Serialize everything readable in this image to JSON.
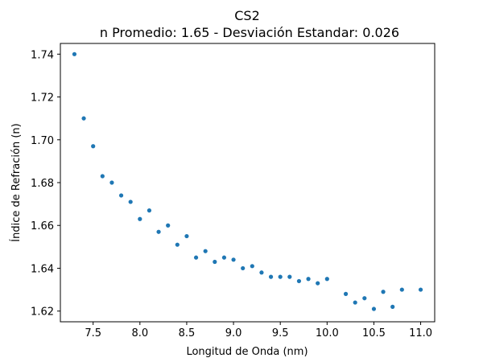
{
  "chart_data": {
    "type": "scatter",
    "title": "CS2",
    "subtitle": "n Promedio: 1.65 - Desviación Estandar: 0.026",
    "xlabel": "Longitud de Onda (nm)",
    "ylabel": "Índice de Refración (n)",
    "xlim": [
      7.15,
      11.15
    ],
    "ylim": [
      1.615,
      1.745
    ],
    "x_ticks": [
      "7.5",
      "8.0",
      "8.5",
      "9.0",
      "9.5",
      "10.0",
      "10.5",
      "11.0"
    ],
    "y_ticks": [
      "1.62",
      "1.64",
      "1.66",
      "1.68",
      "1.70",
      "1.72",
      "1.74"
    ],
    "grid": false,
    "point_color": "#1f77b4",
    "series": [
      {
        "x": [
          7.3,
          7.4,
          7.5,
          7.6,
          7.7,
          7.8,
          7.9,
          8.0,
          8.1,
          8.2,
          8.3,
          8.4,
          8.5,
          8.6,
          8.7,
          8.8,
          8.9,
          9.0,
          9.1,
          9.2,
          9.3,
          9.4,
          9.5,
          9.6,
          9.7,
          9.8,
          9.9,
          10.0,
          10.2,
          10.3,
          10.4,
          10.5,
          10.6,
          10.7,
          10.8,
          11.0
        ],
        "y": [
          1.74,
          1.71,
          1.697,
          1.683,
          1.68,
          1.674,
          1.671,
          1.663,
          1.667,
          1.657,
          1.66,
          1.651,
          1.655,
          1.645,
          1.648,
          1.643,
          1.645,
          1.644,
          1.64,
          1.641,
          1.638,
          1.636,
          1.636,
          1.636,
          1.634,
          1.635,
          1.633,
          1.635,
          1.628,
          1.624,
          1.626,
          1.621,
          1.629,
          1.622,
          1.63,
          1.63
        ]
      }
    ]
  }
}
